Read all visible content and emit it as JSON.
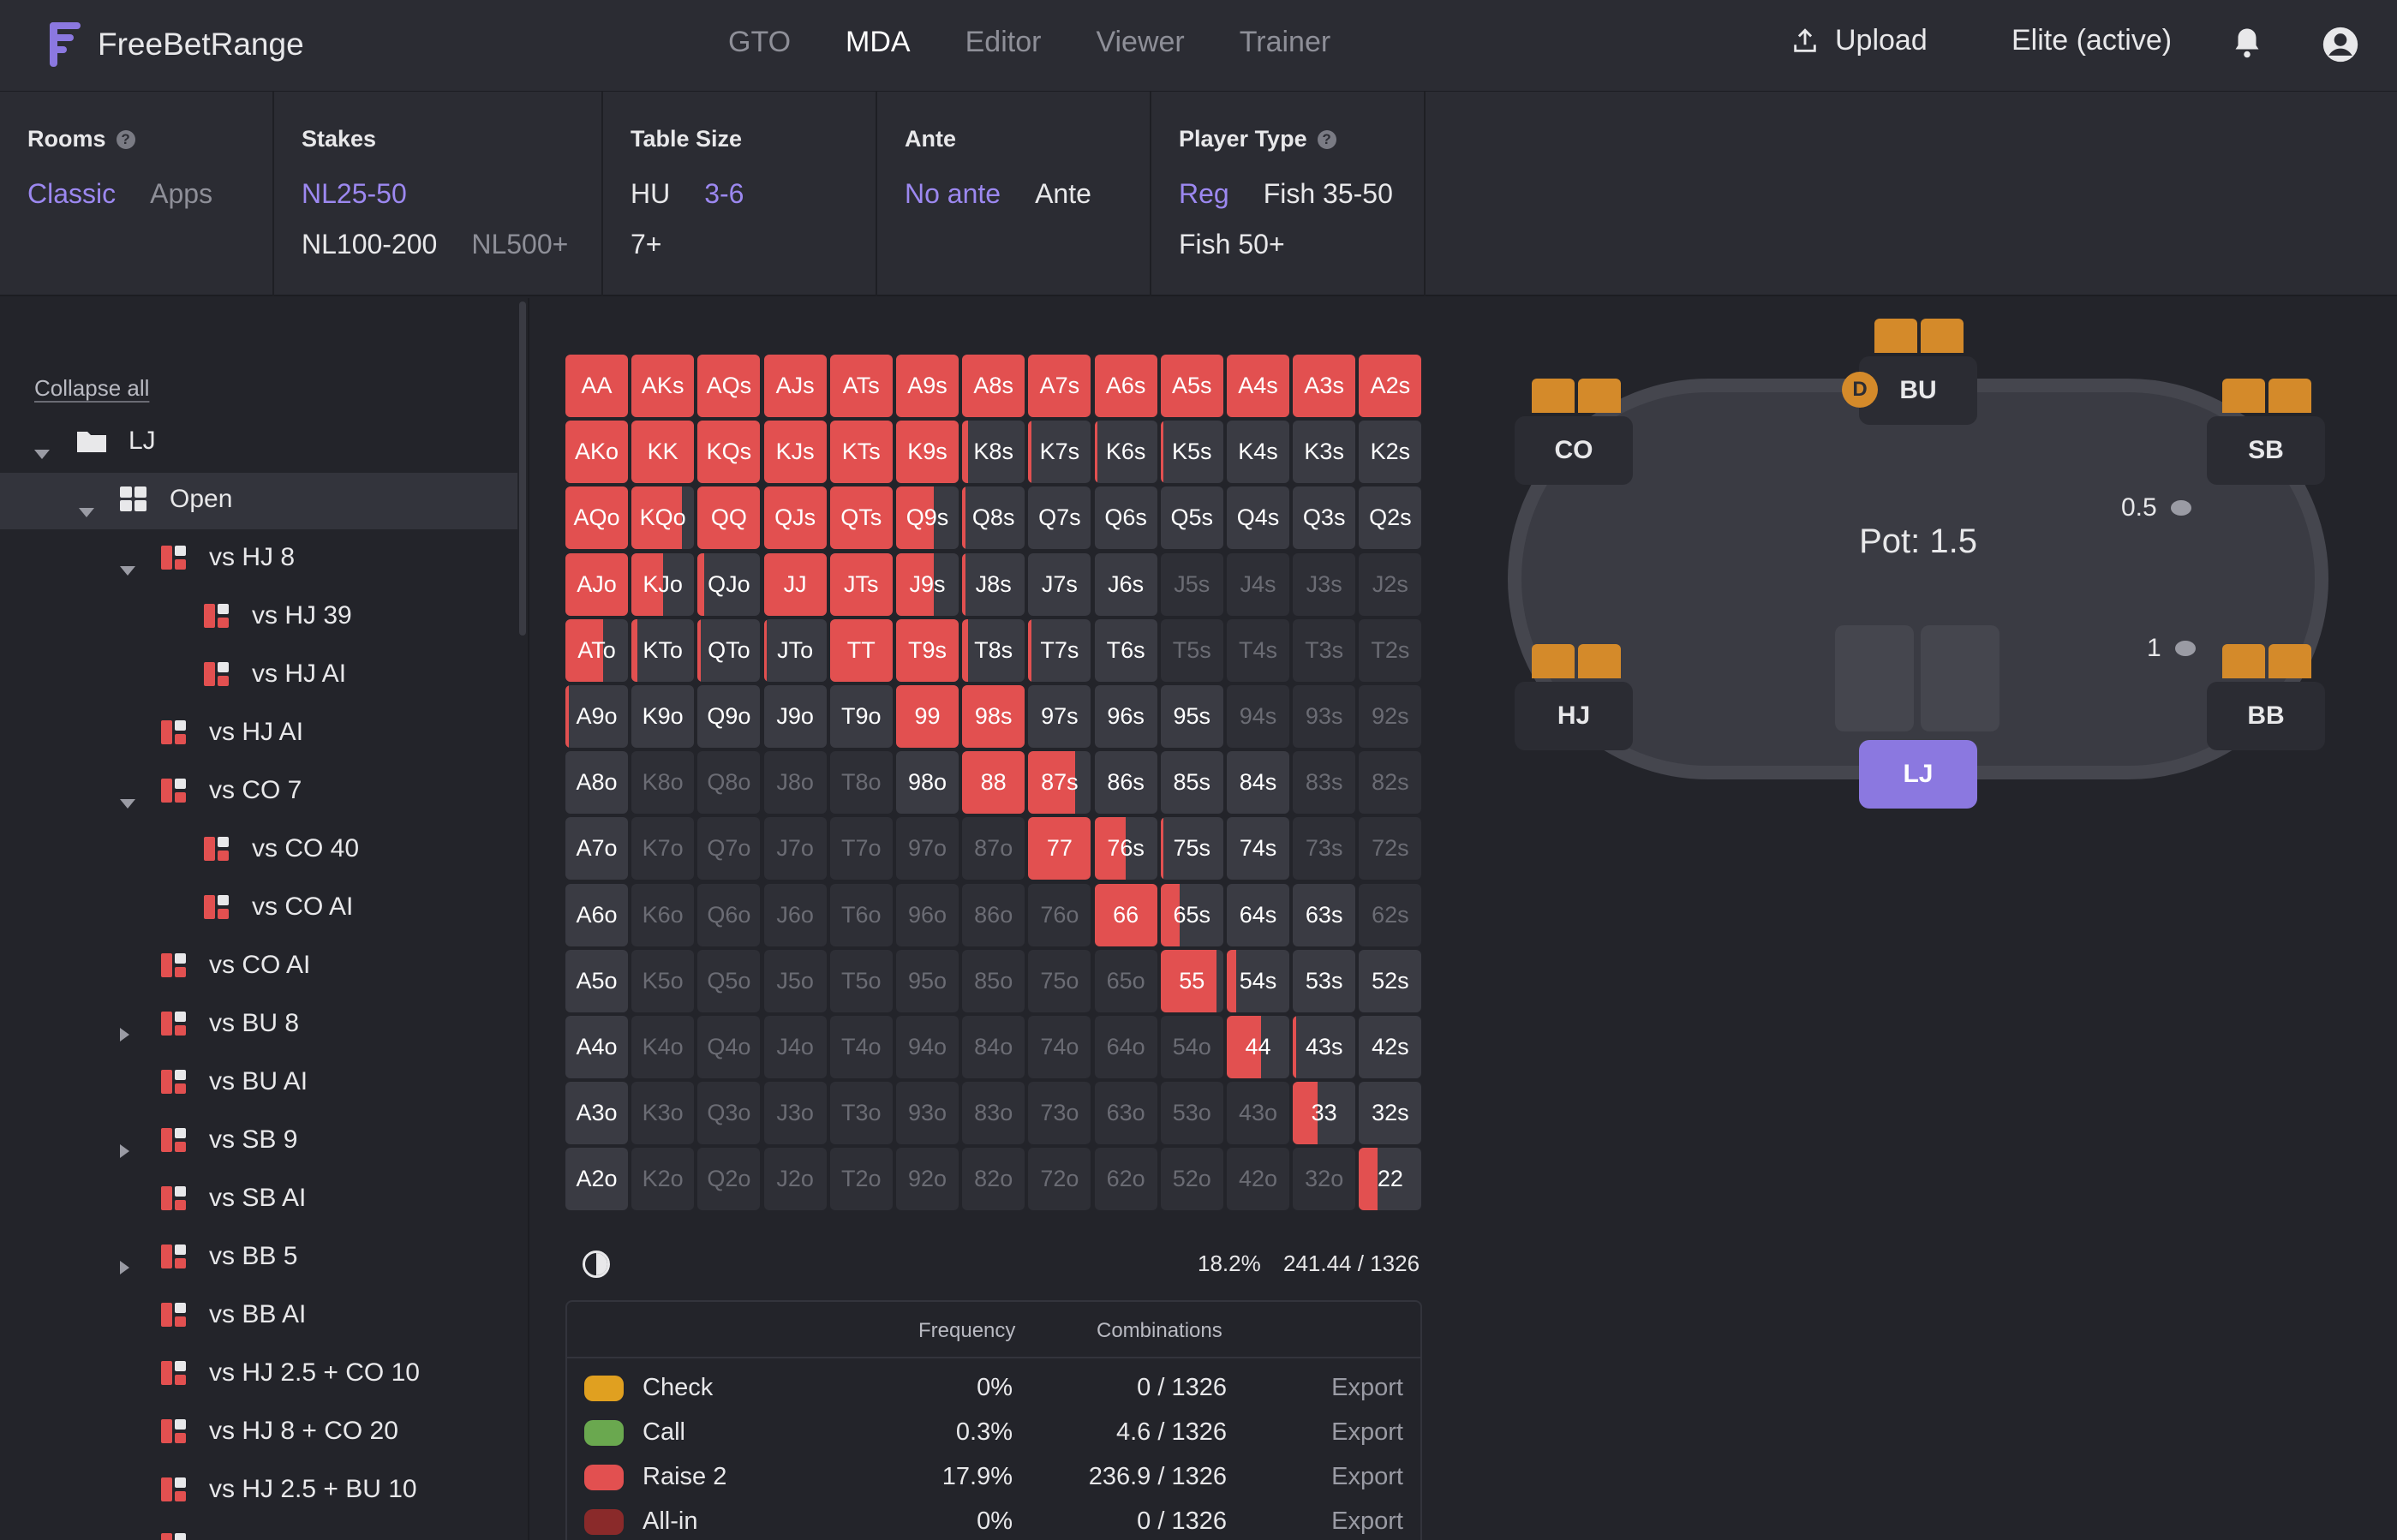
{
  "header": {
    "brand": "FreeBetRange",
    "nav": [
      "GTO",
      "MDA",
      "Editor",
      "Viewer",
      "Trainer"
    ],
    "nav_active": "MDA",
    "upload_label": "Upload",
    "subscription": "Elite (active)"
  },
  "filters": {
    "rooms": {
      "label": "Rooms",
      "options": [
        "Classic",
        "Apps"
      ]
    },
    "stakes": {
      "label": "Stakes",
      "options": [
        "NL25-50",
        "NL100-200",
        "NL500+"
      ]
    },
    "table_size": {
      "label": "Table Size",
      "options": [
        "HU",
        "3-6",
        "7+"
      ]
    },
    "ante": {
      "label": "Ante",
      "options": [
        "No ante",
        "Ante"
      ]
    },
    "player_type": {
      "label": "Player Type",
      "options": [
        "Reg",
        "Fish 35-50",
        "Fish 50+"
      ]
    }
  },
  "sidebar": {
    "collapse_all": "Collapse all",
    "items": [
      {
        "label": "LJ",
        "depth": 0,
        "caret": "down",
        "icon": "folder-icon"
      },
      {
        "label": "Open",
        "depth": 1,
        "caret": "down",
        "icon": "grid-icon",
        "selected": true
      },
      {
        "label": "vs HJ 8",
        "depth": 2,
        "caret": "down",
        "icon": "range-icon"
      },
      {
        "label": "vs HJ 39",
        "depth": 3,
        "caret": "",
        "icon": "range-icon"
      },
      {
        "label": "vs HJ AI",
        "depth": 3,
        "caret": "",
        "icon": "range-icon"
      },
      {
        "label": "vs HJ AI",
        "depth": 2,
        "caret": "",
        "icon": "range-icon"
      },
      {
        "label": "vs CO 7",
        "depth": 2,
        "caret": "down",
        "icon": "range-icon"
      },
      {
        "label": "vs CO 40",
        "depth": 3,
        "caret": "",
        "icon": "range-icon"
      },
      {
        "label": "vs CO AI",
        "depth": 3,
        "caret": "",
        "icon": "range-icon"
      },
      {
        "label": "vs CO AI",
        "depth": 2,
        "caret": "",
        "icon": "range-icon"
      },
      {
        "label": "vs BU 8",
        "depth": 2,
        "caret": "right",
        "icon": "range-icon"
      },
      {
        "label": "vs BU AI",
        "depth": 2,
        "caret": "",
        "icon": "range-icon"
      },
      {
        "label": "vs SB 9",
        "depth": 2,
        "caret": "right",
        "icon": "range-icon"
      },
      {
        "label": "vs SB AI",
        "depth": 2,
        "caret": "",
        "icon": "range-icon"
      },
      {
        "label": "vs BB 5",
        "depth": 2,
        "caret": "right",
        "icon": "range-icon"
      },
      {
        "label": "vs BB AI",
        "depth": 2,
        "caret": "",
        "icon": "range-icon"
      },
      {
        "label": "vs HJ 2.5 + CO 10",
        "depth": 2,
        "caret": "",
        "icon": "range-icon"
      },
      {
        "label": "vs HJ 8 + CO 20",
        "depth": 2,
        "caret": "",
        "icon": "range-icon"
      },
      {
        "label": "vs HJ 2.5 + BU 10",
        "depth": 2,
        "caret": "",
        "icon": "range-icon"
      },
      {
        "label": "",
        "depth": 2,
        "caret": "",
        "icon": "range-icon"
      }
    ]
  },
  "range_grid": {
    "rows": [
      [
        [
          "AA",
          1
        ],
        [
          "AKs",
          1
        ],
        [
          "AQs",
          1
        ],
        [
          "AJs",
          1
        ],
        [
          "ATs",
          1
        ],
        [
          "A9s",
          1
        ],
        [
          "A8s",
          1
        ],
        [
          "A7s",
          1
        ],
        [
          "A6s",
          1
        ],
        [
          "A5s",
          1
        ],
        [
          "A4s",
          1
        ],
        [
          "A3s",
          1
        ],
        [
          "A2s",
          1
        ]
      ],
      [
        [
          "AKo",
          1
        ],
        [
          "KK",
          1
        ],
        [
          "KQs",
          1
        ],
        [
          "KJs",
          1
        ],
        [
          "KTs",
          1
        ],
        [
          "K9s",
          1
        ],
        [
          "K8s",
          0.1
        ],
        [
          "K7s",
          0.05
        ],
        [
          "K6s",
          0.05
        ],
        [
          "K5s",
          0.05
        ],
        [
          "K4s",
          0
        ],
        [
          "K3s",
          0
        ],
        [
          "K2s",
          0
        ]
      ],
      [
        [
          "AQo",
          1
        ],
        [
          "KQo",
          0.8
        ],
        [
          "QQ",
          1
        ],
        [
          "QJs",
          1
        ],
        [
          "QTs",
          1
        ],
        [
          "Q9s",
          0.6
        ],
        [
          "Q8s",
          0.05
        ],
        [
          "Q7s",
          0
        ],
        [
          "Q6s",
          0
        ],
        [
          "Q5s",
          0
        ],
        [
          "Q4s",
          0
        ],
        [
          "Q3s",
          0
        ],
        [
          "Q2s",
          0
        ]
      ],
      [
        [
          "AJo",
          1
        ],
        [
          "KJo",
          0.5
        ],
        [
          "QJo",
          0.1
        ],
        [
          "JJ",
          1
        ],
        [
          "JTs",
          1
        ],
        [
          "J9s",
          0.6
        ],
        [
          "J8s",
          0.05
        ],
        [
          "J7s",
          0
        ],
        [
          "J6s",
          0
        ],
        [
          "J5s",
          -1
        ],
        [
          "J4s",
          -1
        ],
        [
          "J3s",
          -1
        ],
        [
          "J2s",
          -1
        ]
      ],
      [
        [
          "ATo",
          0.6
        ],
        [
          "KTo",
          0.1
        ],
        [
          "QTo",
          0.05
        ],
        [
          "JTo",
          0.05
        ],
        [
          "TT",
          1
        ],
        [
          "T9s",
          1
        ],
        [
          "T8s",
          0.1
        ],
        [
          "T7s",
          0.05
        ],
        [
          "T6s",
          0
        ],
        [
          "T5s",
          -1
        ],
        [
          "T4s",
          -1
        ],
        [
          "T3s",
          -1
        ],
        [
          "T2s",
          -1
        ]
      ],
      [
        [
          "A9o",
          0.05
        ],
        [
          "K9o",
          0
        ],
        [
          "Q9o",
          0
        ],
        [
          "J9o",
          0
        ],
        [
          "T9o",
          0
        ],
        [
          "99",
          1
        ],
        [
          "98s",
          1
        ],
        [
          "97s",
          0
        ],
        [
          "96s",
          0
        ],
        [
          "95s",
          0
        ],
        [
          "94s",
          -1
        ],
        [
          "93s",
          -1
        ],
        [
          "92s",
          -1
        ]
      ],
      [
        [
          "A8o",
          0
        ],
        [
          "K8o",
          -1
        ],
        [
          "Q8o",
          -1
        ],
        [
          "J8o",
          -1
        ],
        [
          "T8o",
          -1
        ],
        [
          "98o",
          0
        ],
        [
          "88",
          1
        ],
        [
          "87s",
          0.75
        ],
        [
          "86s",
          0
        ],
        [
          "85s",
          0
        ],
        [
          "84s",
          0
        ],
        [
          "83s",
          -1
        ],
        [
          "82s",
          -1
        ]
      ],
      [
        [
          "A7o",
          0
        ],
        [
          "K7o",
          -1
        ],
        [
          "Q7o",
          -1
        ],
        [
          "J7o",
          -1
        ],
        [
          "T7o",
          -1
        ],
        [
          "97o",
          -1
        ],
        [
          "87o",
          -1
        ],
        [
          "77",
          1
        ],
        [
          "76s",
          0.5
        ],
        [
          "75s",
          0.05
        ],
        [
          "74s",
          0
        ],
        [
          "73s",
          -1
        ],
        [
          "72s",
          -1
        ]
      ],
      [
        [
          "A6o",
          0
        ],
        [
          "K6o",
          -1
        ],
        [
          "Q6o",
          -1
        ],
        [
          "J6o",
          -1
        ],
        [
          "T6o",
          -1
        ],
        [
          "96o",
          -1
        ],
        [
          "86o",
          -1
        ],
        [
          "76o",
          -1
        ],
        [
          "66",
          1
        ],
        [
          "65s",
          0.3
        ],
        [
          "64s",
          0
        ],
        [
          "63s",
          0
        ],
        [
          "62s",
          -1
        ]
      ],
      [
        [
          "A5o",
          0
        ],
        [
          "K5o",
          -1
        ],
        [
          "Q5o",
          -1
        ],
        [
          "J5o",
          -1
        ],
        [
          "T5o",
          -1
        ],
        [
          "95o",
          -1
        ],
        [
          "85o",
          -1
        ],
        [
          "75o",
          -1
        ],
        [
          "65o",
          -1
        ],
        [
          "55",
          0.9
        ],
        [
          "54s",
          0.15
        ],
        [
          "53s",
          0
        ],
        [
          "52s",
          0
        ]
      ],
      [
        [
          "A4o",
          0
        ],
        [
          "K4o",
          -1
        ],
        [
          "Q4o",
          -1
        ],
        [
          "J4o",
          -1
        ],
        [
          "T4o",
          -1
        ],
        [
          "94o",
          -1
        ],
        [
          "84o",
          -1
        ],
        [
          "74o",
          -1
        ],
        [
          "64o",
          -1
        ],
        [
          "54o",
          -1
        ],
        [
          "44",
          0.55
        ],
        [
          "43s",
          0.05
        ],
        [
          "42s",
          0
        ]
      ],
      [
        [
          "A3o",
          0
        ],
        [
          "K3o",
          -1
        ],
        [
          "Q3o",
          -1
        ],
        [
          "J3o",
          -1
        ],
        [
          "T3o",
          -1
        ],
        [
          "93o",
          -1
        ],
        [
          "83o",
          -1
        ],
        [
          "73o",
          -1
        ],
        [
          "63o",
          -1
        ],
        [
          "53o",
          -1
        ],
        [
          "43o",
          -1
        ],
        [
          "33",
          0.4
        ],
        [
          "32s",
          0
        ]
      ],
      [
        [
          "A2o",
          0
        ],
        [
          "K2o",
          -1
        ],
        [
          "Q2o",
          -1
        ],
        [
          "J2o",
          -1
        ],
        [
          "T2o",
          -1
        ],
        [
          "92o",
          -1
        ],
        [
          "82o",
          -1
        ],
        [
          "72o",
          -1
        ],
        [
          "62o",
          -1
        ],
        [
          "52o",
          -1
        ],
        [
          "42o",
          -1
        ],
        [
          "32o",
          -1
        ],
        [
          "22",
          0.3
        ]
      ]
    ],
    "summary_pct": "18.2%",
    "summary_combos": "241.44 / 1326"
  },
  "legend": {
    "col_frequency": "Frequency",
    "col_combinations": "Combinations",
    "rows": [
      {
        "name": "Check",
        "freq": "0%",
        "combos": "0 / 1326",
        "export": "Export",
        "color": "#e0a020"
      },
      {
        "name": "Call",
        "freq": "0.3%",
        "combos": "4.6 / 1326",
        "export": "Export",
        "color": "#6aa84f"
      },
      {
        "name": "Raise 2",
        "freq": "17.9%",
        "combos": "236.9 / 1326",
        "export": "Export",
        "color": "#e25050"
      },
      {
        "name": "All-in",
        "freq": "0%",
        "combos": "0 / 1326",
        "export": "Export",
        "color": "#8a2a2a"
      }
    ]
  },
  "poker_table": {
    "pot": "Pot: 1.5",
    "dealer": "D",
    "seats": {
      "co": "CO",
      "bu": "BU",
      "sb": "SB",
      "hj": "HJ",
      "bb": "BB",
      "lj": "LJ"
    },
    "bets": {
      "sb": "0.5",
      "bb": "1"
    }
  },
  "colors": {
    "accent": "#9c88f0",
    "raise": "#e25050",
    "hero_seat": "#8b78e0",
    "cards": "#d48a2a"
  }
}
